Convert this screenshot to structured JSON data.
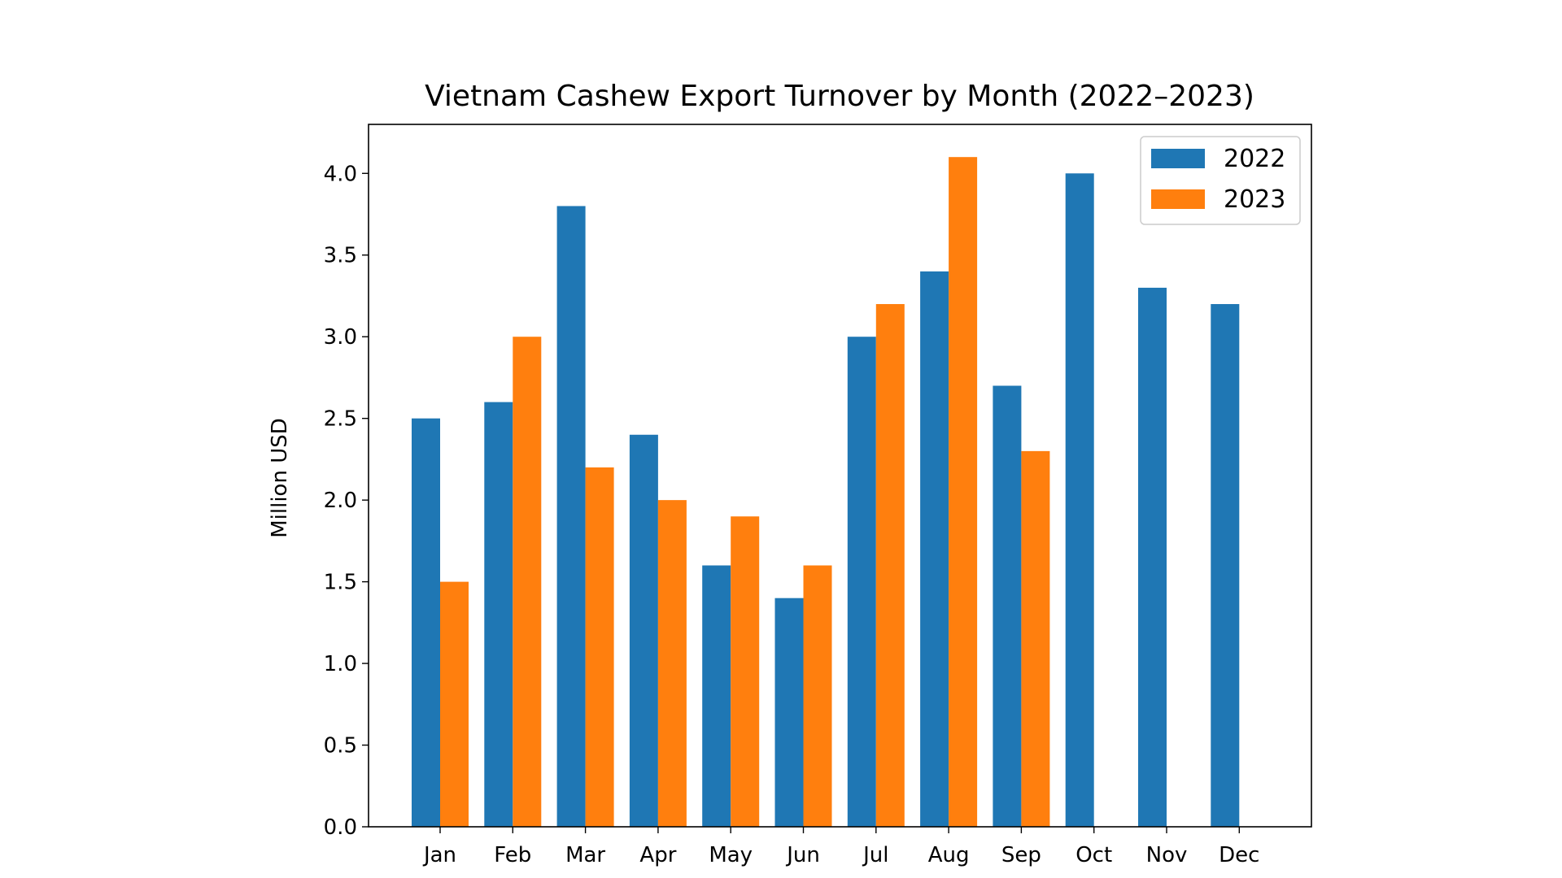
{
  "chart_data": {
    "type": "bar",
    "title": "Vietnam Cashew Export Turnover by Month (2022–2023)",
    "xlabel": "",
    "ylabel": "Million USD",
    "categories": [
      "Jan",
      "Feb",
      "Mar",
      "Apr",
      "May",
      "Jun",
      "Jul",
      "Aug",
      "Sep",
      "Oct",
      "Nov",
      "Dec"
    ],
    "series": [
      {
        "name": "2022",
        "color": "#1f77b4",
        "values": [
          2.5,
          2.6,
          3.8,
          2.4,
          1.6,
          1.4,
          3.0,
          3.4,
          2.7,
          4.0,
          3.3,
          3.2
        ]
      },
      {
        "name": "2023",
        "color": "#ff7f0e",
        "values": [
          1.5,
          3.0,
          2.2,
          2.0,
          1.9,
          1.6,
          3.2,
          4.1,
          2.3,
          null,
          null,
          null
        ]
      }
    ],
    "ylim": [
      0,
      4.3
    ],
    "yticks": [
      "0.0",
      "0.5",
      "1.0",
      "1.5",
      "2.0",
      "2.5",
      "3.0",
      "3.5",
      "4.0"
    ],
    "grid": false,
    "legend_position": "top-right"
  }
}
